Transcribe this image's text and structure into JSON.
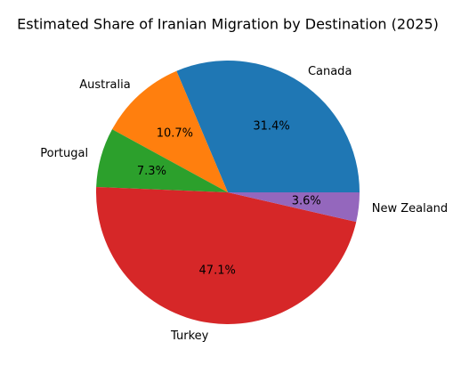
{
  "chart_data": {
    "type": "pie",
    "title": "Estimated Share of Iranian Migration by Destination (2025)",
    "categories": [
      "Canada",
      "Australia",
      "Portugal",
      "Turkey",
      "New Zealand"
    ],
    "values": [
      31.4,
      10.7,
      7.3,
      47.1,
      3.6
    ],
    "value_labels": [
      "31.4%",
      "10.7%",
      "7.3%",
      "47.1%",
      "3.6%"
    ],
    "colors": [
      "#1f77b4",
      "#ff7f0e",
      "#2ca02c",
      "#d62728",
      "#9467bd"
    ]
  }
}
